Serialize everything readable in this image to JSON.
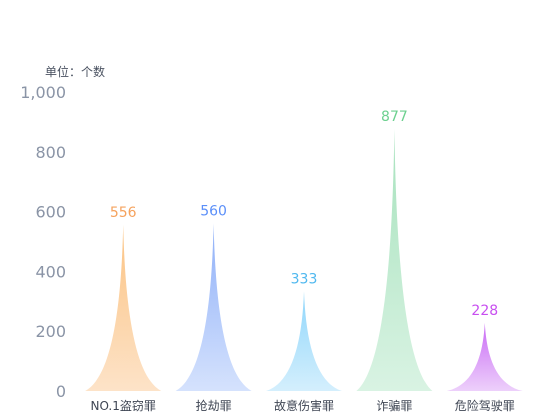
{
  "chart_data": {
    "type": "bar",
    "unit_label": "单位：个数",
    "categories": [
      "NO.1盗窃罪",
      "抢劫罪",
      "故意伤害罪",
      "诈骗罪",
      "危险驾驶罪"
    ],
    "values": [
      556,
      560,
      333,
      877,
      228
    ],
    "ylim": [
      0,
      1000
    ],
    "yticks": [
      "0",
      "200",
      "400",
      "600",
      "800",
      "1,000"
    ],
    "ytick_values": [
      0,
      200,
      400,
      600,
      800,
      1000
    ],
    "grid": false,
    "bar_style": "pictorial-spike",
    "colors": {
      "label": [
        "#f5a25d",
        "#5b8ff9",
        "#4fb8ef",
        "#6cd08f",
        "#c84ff0"
      ],
      "fill_top": [
        "#fbc383",
        "#8fb0f8",
        "#8fd6fb",
        "#a7e2bd",
        "#c96af5"
      ],
      "fill_bottom": [
        "#fde3c8",
        "#d5e2fd",
        "#d4effd",
        "#d9f3e3",
        "#edd0fb"
      ]
    }
  }
}
